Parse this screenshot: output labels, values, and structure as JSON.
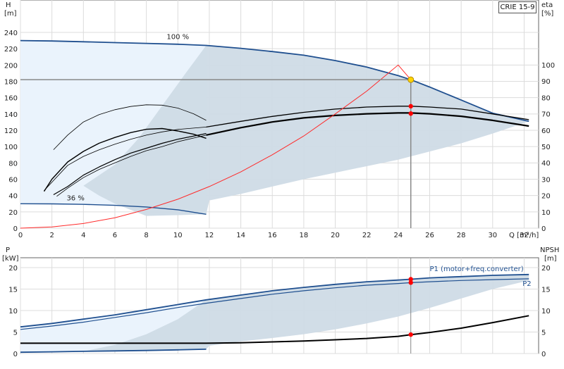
{
  "model_label": "CRIE 15-9",
  "colors": {
    "curve_blue": "#1f4f8f",
    "shade_dark": "#cfdbe6",
    "shade_light": "#eaf3fc",
    "grid": "#dcdcdc",
    "eta_curve": "#ff2a2a",
    "operating_point": "#ffd400",
    "marker": "#ff0000"
  },
  "chart_data": [
    {
      "type": "line",
      "title": "",
      "xlabel": "Q [m³/h]",
      "x_ticks": [
        "0",
        "2",
        "4",
        "6",
        "8",
        "10",
        "12",
        "14",
        "16",
        "18",
        "20",
        "22",
        "24",
        "26",
        "28",
        "30",
        "32"
      ],
      "xlim": [
        0,
        33
      ],
      "ylabel_left": [
        "H",
        "[m]"
      ],
      "ylim_left": [
        0,
        250
      ],
      "y_ticks_left": [
        "0",
        "20",
        "40",
        "60",
        "80",
        "100",
        "120",
        "140",
        "160",
        "180",
        "200",
        "220",
        "240"
      ],
      "ylabel_right": [
        "eta",
        "[%]"
      ],
      "ylim_right": [
        0,
        125
      ],
      "y_ticks_right": [
        "0",
        "10",
        "20",
        "30",
        "40",
        "50",
        "60",
        "70",
        "80",
        "90",
        "100"
      ],
      "speed_labels": [
        {
          "text": "100 %",
          "x": 10,
          "y": 232
        },
        {
          "text": "36 %",
          "x": 3.5,
          "y": 34
        }
      ],
      "series": [
        {
          "role": "H_max",
          "x": [
            0,
            2,
            4,
            6,
            8,
            10,
            11.8,
            14,
            16,
            18,
            20,
            22,
            24,
            24.8,
            26,
            28,
            30,
            32.3
          ],
          "y": [
            230,
            229.5,
            228.5,
            227.5,
            226.5,
            225.5,
            224,
            220.5,
            216.5,
            212,
            205.5,
            197.5,
            187,
            182,
            173,
            157,
            141,
            131
          ]
        },
        {
          "role": "H_min",
          "x": [
            0,
            2,
            4,
            6,
            8,
            10,
            11.8
          ],
          "y": [
            30,
            29.8,
            29.2,
            28,
            26,
            22.5,
            17
          ]
        },
        {
          "role": "H_duty",
          "x": [
            11.8,
            14,
            16,
            18,
            20,
            22,
            24,
            24.8,
            26,
            28,
            30,
            32.3
          ],
          "y": [
            124,
            131,
            137,
            142,
            146,
            148.5,
            149.5,
            149.5,
            148.5,
            146,
            140,
            133
          ]
        },
        {
          "role": "eta_duty",
          "x": [
            11.8,
            14,
            16,
            18,
            20,
            22,
            24,
            24.8,
            26,
            28,
            30,
            32.3
          ],
          "y": [
            57,
            61.5,
            65,
            67.5,
            69,
            70,
            70.5,
            70.5,
            70,
            68.5,
            66,
            62.5
          ]
        },
        {
          "role": "eta_small_a",
          "x": [
            2.1,
            3,
            4,
            5,
            6,
            7,
            8,
            9,
            10,
            11,
            11.8
          ],
          "y": [
            48,
            57,
            65,
            69.5,
            72.5,
            74.5,
            75.5,
            75.3,
            73.5,
            70,
            66
          ]
        },
        {
          "role": "eta_small_b",
          "x": [
            1.5,
            2,
            3,
            4,
            5,
            6,
            7,
            8,
            9,
            10,
            11,
            11.8
          ],
          "y": [
            22.5,
            30,
            40.5,
            47,
            52,
            55.5,
            58.5,
            60.5,
            61,
            59.5,
            57.5,
            55
          ]
        },
        {
          "role": "H_small_a",
          "x": [
            1.5,
            3,
            4,
            5,
            6,
            7,
            8,
            9,
            10,
            11.8
          ],
          "y": [
            46,
            77,
            88,
            96,
            103,
            109,
            114,
            118,
            121,
            124
          ]
        },
        {
          "role": "H_small_b",
          "x": [
            2.3,
            3,
            4,
            5,
            6,
            7,
            8,
            9,
            10,
            11.8
          ],
          "y": [
            39,
            49,
            62,
            72,
            80,
            88,
            95,
            100,
            106,
            114
          ]
        },
        {
          "role": "H_small_c",
          "x": [
            2.1,
            3,
            4,
            5,
            6,
            7,
            8,
            9,
            10,
            11.8
          ],
          "y": [
            41,
            51,
            65,
            75,
            84,
            92,
            98,
            104,
            109,
            116
          ]
        },
        {
          "role": "system_curve",
          "x": [
            0,
            2,
            4,
            6,
            8,
            10,
            12,
            14,
            16,
            18,
            20,
            22,
            24,
            24.8
          ],
          "y": [
            0,
            1.5,
            5.7,
            12.8,
            23,
            35.5,
            51,
            69,
            90,
            113,
            140,
            168,
            200,
            182
          ]
        },
        {
          "role": "operating_H",
          "x": [
            24.8
          ],
          "y": [
            182
          ]
        },
        {
          "role": "operating_markers",
          "x": [
            24.8,
            24.8
          ],
          "y": [
            149.5,
            140.5
          ]
        }
      ]
    },
    {
      "type": "line",
      "title": "",
      "xlabel": "",
      "xlim": [
        0,
        33
      ],
      "ylabel_left": [
        "P",
        "[kW]"
      ],
      "ylim_left": [
        0,
        22
      ],
      "y_ticks_left": [
        "0",
        "5",
        "10",
        "15",
        "20"
      ],
      "ylabel_right": [
        "NPSH",
        "[m]"
      ],
      "ylim_right": [
        0,
        22
      ],
      "y_ticks_right": [
        "0",
        "5",
        "10",
        "15",
        "20"
      ],
      "legend": [
        {
          "text": "P1 (motor+freq.converter)",
          "x": 26,
          "y": 19.2
        },
        {
          "text": "P2",
          "x": 31.9,
          "y": 15.7
        }
      ],
      "series": [
        {
          "role": "P1_max",
          "x": [
            0,
            2,
            4,
            6,
            8,
            10,
            11.8,
            14,
            16,
            18,
            20,
            22,
            24,
            24.8,
            26,
            28,
            30,
            32.3
          ],
          "y": [
            6.2,
            7,
            8,
            9,
            10.2,
            11.4,
            12.5,
            13.6,
            14.6,
            15.4,
            16.1,
            16.7,
            17.1,
            17.3,
            17.6,
            17.9,
            18.2,
            18.4
          ]
        },
        {
          "role": "P2_max",
          "x": [
            0,
            2,
            4,
            6,
            8,
            10,
            11.8,
            14,
            16,
            18,
            20,
            22,
            24,
            24.8,
            26,
            28,
            30,
            32.3
          ],
          "y": [
            5.6,
            6.4,
            7.3,
            8.4,
            9.5,
            10.7,
            11.7,
            12.8,
            13.8,
            14.6,
            15.3,
            15.9,
            16.3,
            16.5,
            16.7,
            17,
            17.2,
            17.4
          ]
        },
        {
          "role": "P_min",
          "x": [
            0,
            2,
            4,
            6,
            8,
            10,
            11.8
          ],
          "y": [
            0.3,
            0.4,
            0.5,
            0.6,
            0.7,
            0.85,
            1
          ]
        },
        {
          "role": "NPSH",
          "x": [
            0,
            4,
            11.8,
            14,
            16,
            18,
            20,
            22,
            24,
            24.8,
            26,
            28,
            30,
            32.3
          ],
          "y": [
            2.4,
            2.4,
            2.4,
            2.5,
            2.7,
            2.9,
            3.2,
            3.5,
            4,
            4.4,
            4.9,
            5.9,
            7.2,
            8.8
          ]
        },
        {
          "role": "operating_markers",
          "x": [
            24.8,
            24.8,
            24.8
          ],
          "y": [
            17.3,
            16.5,
            4.4
          ]
        }
      ]
    }
  ]
}
